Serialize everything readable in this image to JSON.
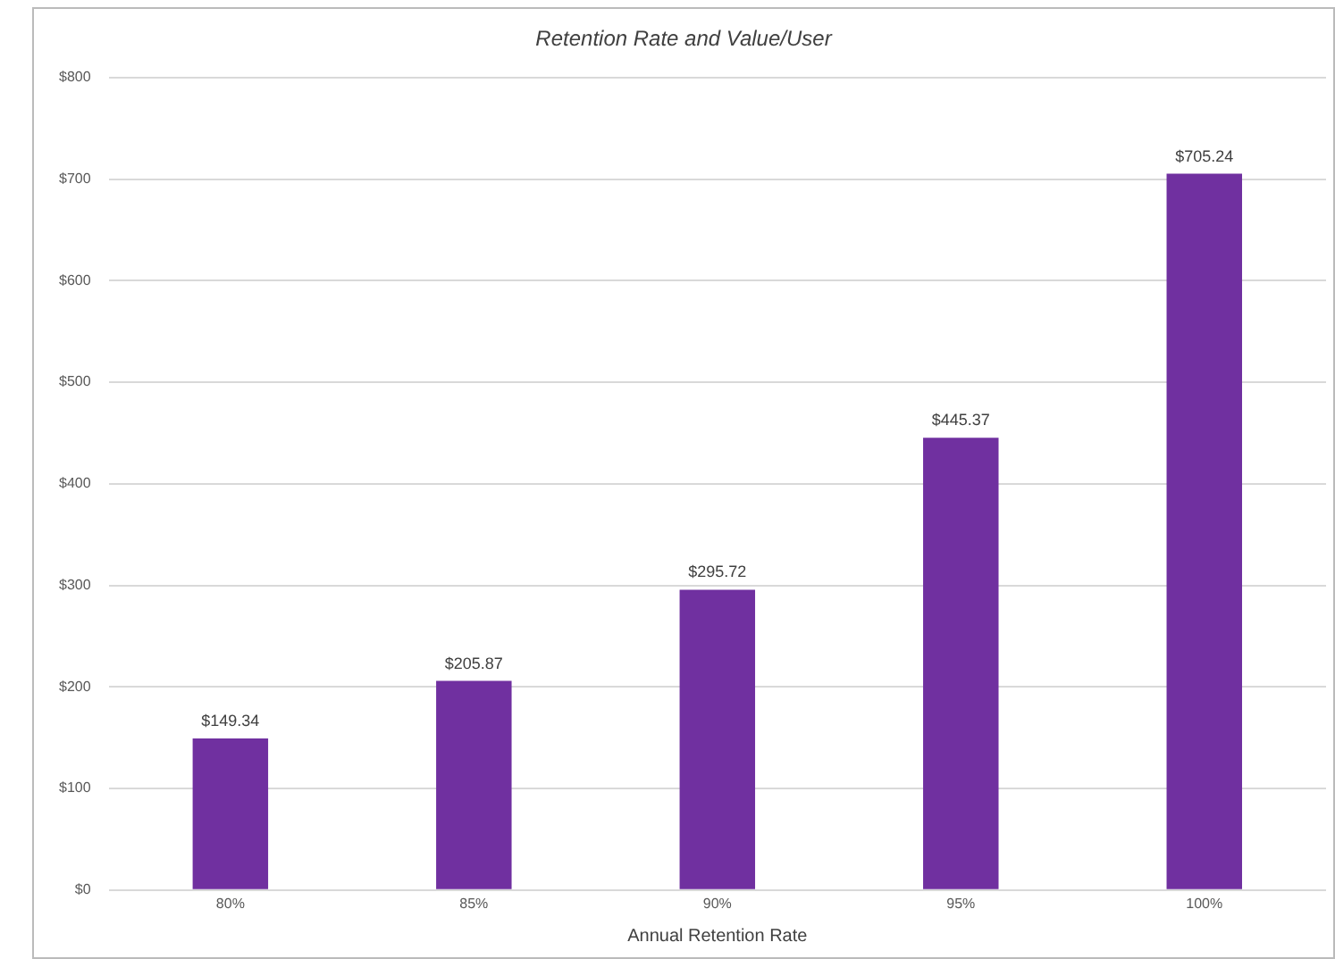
{
  "chart_data": {
    "type": "bar",
    "title": "Retention Rate and Value/User",
    "xlabel": "Annual Retention Rate",
    "categories": [
      "80%",
      "85%",
      "90%",
      "95%",
      "100%"
    ],
    "values": [
      149.34,
      205.87,
      295.72,
      445.37,
      705.24
    ],
    "value_labels": [
      "$149.34",
      "$205.87",
      "$295.72",
      "$445.37",
      "$705.24"
    ],
    "color": "#7030a0",
    "ylim": [
      0,
      800
    ],
    "yticks": [
      {
        "value": 0,
        "label": "$0"
      },
      {
        "value": 100,
        "label": "$100"
      },
      {
        "value": 200,
        "label": "$200"
      },
      {
        "value": 300,
        "label": "$300"
      },
      {
        "value": 400,
        "label": "$400"
      },
      {
        "value": 500,
        "label": "$500"
      },
      {
        "value": 600,
        "label": "$600"
      },
      {
        "value": 700,
        "label": "$700"
      },
      {
        "value": 800,
        "label": "$800"
      }
    ],
    "grid": "y",
    "legend": false
  }
}
